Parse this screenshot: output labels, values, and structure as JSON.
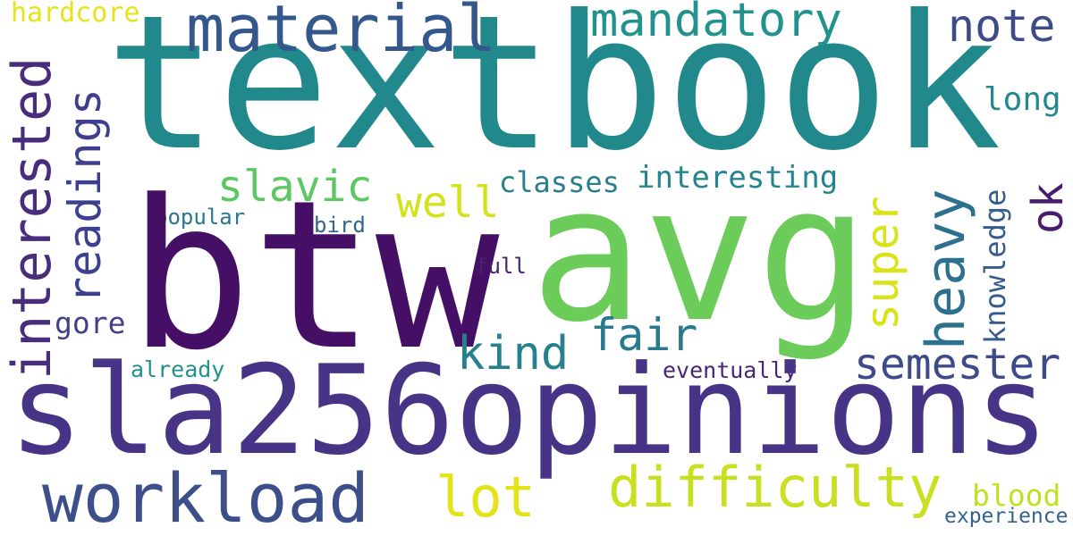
{
  "words": {
    "textbook": {
      "text": "textbook",
      "color": "#21898c"
    },
    "btw": {
      "text": "btw",
      "color": "#440f64"
    },
    "avg": {
      "text": "avg",
      "color": "#6bcc5a"
    },
    "sla256": {
      "text": "sla256opinions",
      "color": "#473486"
    },
    "material": {
      "text": "material",
      "color": "#35588c"
    },
    "mandatory": {
      "text": "mandatory",
      "color": "#21928c"
    },
    "note": {
      "text": "note",
      "color": "#3d4b89"
    },
    "hardcore": {
      "text": "hardcore",
      "color": "#e5e319"
    },
    "long": {
      "text": "long",
      "color": "#24888d"
    },
    "interested": {
      "text": "interested",
      "color": "#472d7b"
    },
    "readings": {
      "text": "readings",
      "color": "#3f3f8f"
    },
    "slavic": {
      "text": "slavic",
      "color": "#5cc863"
    },
    "well": {
      "text": "well",
      "color": "#d2e21b"
    },
    "classes": {
      "text": "classes",
      "color": "#277f8e"
    },
    "interesting": {
      "text": "interesting",
      "color": "#25858e"
    },
    "popular": {
      "text": "popular",
      "color": "#2a768e"
    },
    "bird": {
      "text": "bird",
      "color": "#32648e"
    },
    "full": {
      "text": "full",
      "color": "#482072"
    },
    "heavy": {
      "text": "heavy",
      "color": "#2d718e"
    },
    "super": {
      "text": "super",
      "color": "#dae319"
    },
    "knowledge": {
      "text": "knowledge",
      "color": "#365c8d"
    },
    "ok": {
      "text": "ok",
      "color": "#481c6e"
    },
    "fair": {
      "text": "fair",
      "color": "#297a8e"
    },
    "kind": {
      "text": "kind",
      "color": "#27808e"
    },
    "gore": {
      "text": "gore",
      "color": "#424086"
    },
    "semester": {
      "text": "semester",
      "color": "#3e4a89"
    },
    "already": {
      "text": "already",
      "color": "#21918c"
    },
    "eventually": {
      "text": "eventually",
      "color": "#482677"
    },
    "workload": {
      "text": "workload",
      "color": "#3c4f8a"
    },
    "lot": {
      "text": "lot",
      "color": "#e2e418"
    },
    "difficulty": {
      "text": "difficulty",
      "color": "#c8e020"
    },
    "blood": {
      "text": "blood",
      "color": "#c2df23"
    },
    "experience": {
      "text": "experience",
      "color": "#33638d"
    }
  }
}
